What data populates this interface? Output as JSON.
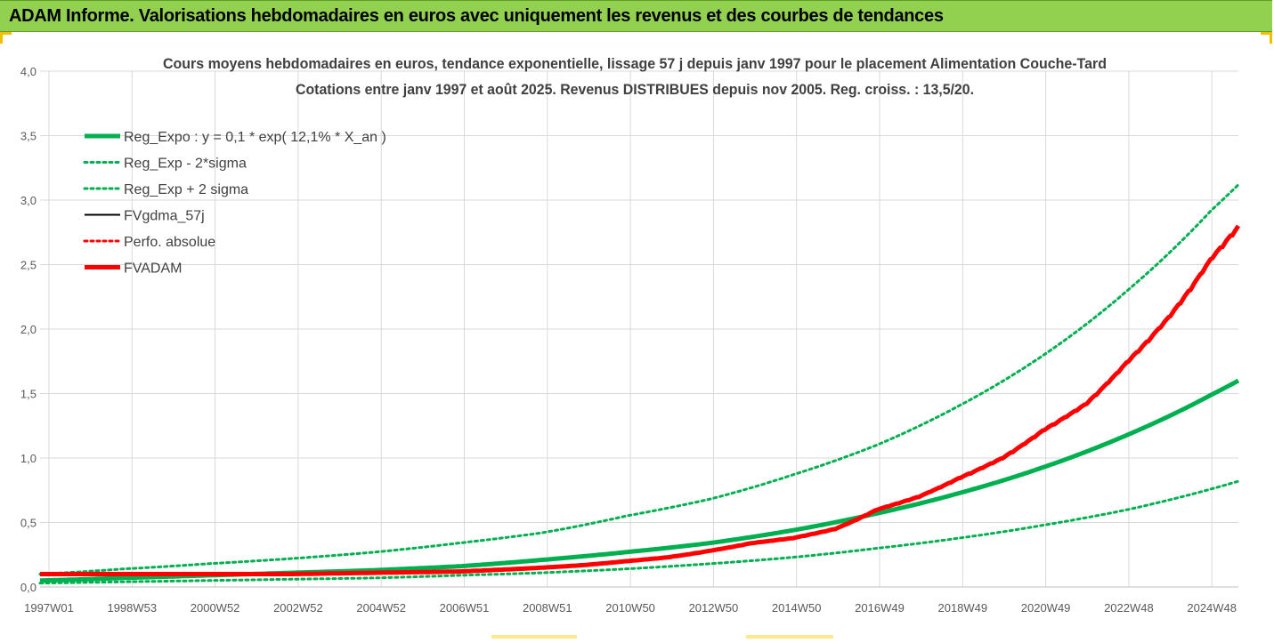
{
  "banner": {
    "title": "ADAM Informe. Valorisations hebdomadaires en euros avec uniquement les revenus et des courbes de tendances"
  },
  "colors": {
    "banner_bg": "#92d050",
    "reg_expo": "#00b050",
    "fvgdma": "#000000",
    "fvadam": "#ff0000",
    "grid": "#d9d9d9"
  },
  "chart_data": {
    "type": "line",
    "title": "Cours moyens hebdomadaires en euros, tendance exponentielle, lissage 57 j depuis janv 1997 pour le placement Alimentation Couche-Tard",
    "subtitle": "Cotations entre janv 1997 et août 2025.  Revenus DISTRIBUES depuis nov 2005. Reg. croiss. : 13,5/20.",
    "xlabel": "",
    "ylabel": "",
    "ylim": [
      0,
      4
    ],
    "y_ticks": [
      "0,0",
      "0,5",
      "1,0",
      "1,5",
      "2,0",
      "2,5",
      "3,0",
      "3,5",
      "4,0"
    ],
    "x_tick_labels": [
      "1997W01",
      "1998W53",
      "2000W52",
      "2002W52",
      "2004W52",
      "2006W51",
      "2008W51",
      "2010W50",
      "2012W50",
      "2014W50",
      "2016W49",
      "2018W49",
      "2020W49",
      "2022W48",
      "2024W48"
    ],
    "x_range": [
      1997.0,
      2025.65
    ],
    "grid": true,
    "legend_position": "top-left",
    "series": [
      {
        "name": "Reg_Expo : y = 0,1 * exp( 12,1% *  X_an )",
        "style": "solid-thick",
        "color": "#00b050",
        "x": [
          1997,
          1999,
          2001,
          2003,
          2005,
          2007,
          2009,
          2011,
          2013,
          2015,
          2017,
          2019,
          2021,
          2023,
          2025,
          2025.65
        ],
        "y": [
          0.05,
          0.07,
          0.09,
          0.11,
          0.13,
          0.16,
          0.21,
          0.27,
          0.34,
          0.44,
          0.57,
          0.73,
          0.93,
          1.18,
          1.49,
          1.6
        ]
      },
      {
        "name": "Reg_Exp - 2*sigma",
        "style": "dotted",
        "color": "#00b050",
        "x": [
          1997,
          1999,
          2001,
          2003,
          2005,
          2007,
          2009,
          2011,
          2013,
          2015,
          2017,
          2019,
          2021,
          2023,
          2025,
          2025.65
        ],
        "y": [
          0.03,
          0.04,
          0.05,
          0.06,
          0.07,
          0.09,
          0.11,
          0.14,
          0.18,
          0.23,
          0.3,
          0.38,
          0.48,
          0.6,
          0.76,
          0.82
        ]
      },
      {
        "name": "Reg_Exp + 2 sigma",
        "style": "dotted",
        "color": "#00b050",
        "x": [
          1997,
          1999,
          2001,
          2003,
          2005,
          2007,
          2009,
          2011,
          2013,
          2015,
          2017,
          2019,
          2021,
          2023,
          2025,
          2025.65
        ],
        "y": [
          0.1,
          0.14,
          0.18,
          0.22,
          0.27,
          0.34,
          0.42,
          0.55,
          0.68,
          0.87,
          1.1,
          1.41,
          1.8,
          2.3,
          2.92,
          3.12
        ]
      },
      {
        "name": "FVgdma_57j",
        "style": "solid",
        "color": "#000000",
        "x": [
          1997,
          1999,
          2001,
          2003,
          2005,
          2007,
          2009,
          2010,
          2011,
          2012,
          2013,
          2014,
          2015,
          2016,
          2017,
          2018,
          2019,
          2020,
          2021,
          2022,
          2023,
          2024,
          2025,
          2025.65
        ],
        "y": [
          0.1,
          0.1,
          0.1,
          0.1,
          0.11,
          0.12,
          0.15,
          0.17,
          0.2,
          0.23,
          0.28,
          0.34,
          0.38,
          0.45,
          0.6,
          0.7,
          0.85,
          1.0,
          1.22,
          1.42,
          1.75,
          2.1,
          2.55,
          2.8
        ]
      },
      {
        "name": "Perfo. absolue",
        "style": "dotted",
        "color": "#ff0000",
        "x": [],
        "y": []
      },
      {
        "name": "FVADAM",
        "style": "solid-thick-stepped",
        "color": "#ff0000",
        "x": [
          1997,
          1999,
          2001,
          2003,
          2005,
          2007,
          2009,
          2010,
          2011,
          2012,
          2013,
          2014,
          2015,
          2016,
          2017,
          2018,
          2019,
          2020,
          2021,
          2022,
          2023,
          2024,
          2025,
          2025.65
        ],
        "y": [
          0.1,
          0.1,
          0.1,
          0.1,
          0.11,
          0.12,
          0.15,
          0.17,
          0.2,
          0.23,
          0.28,
          0.34,
          0.38,
          0.45,
          0.6,
          0.7,
          0.85,
          1.0,
          1.22,
          1.42,
          1.75,
          2.1,
          2.55,
          2.8
        ]
      }
    ]
  }
}
